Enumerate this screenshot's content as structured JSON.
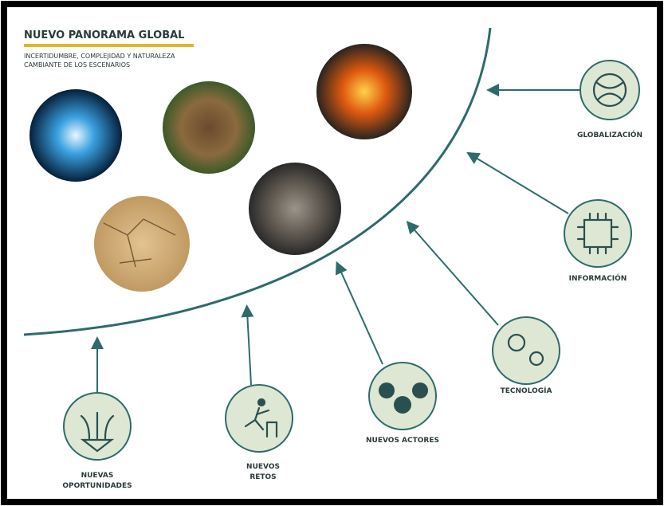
{
  "header": {
    "title": "NUEVO PANORAMA GLOBAL",
    "subtitle": [
      "INCERTIDUMBRE, COMPLEJIDAD Y NATURALEZA",
      "CAMBIANTE DE LOS ESCENARIOS"
    ]
  },
  "nodes": [
    {
      "label": [
        "GLOBALIZACIÓN"
      ]
    },
    {
      "label": [
        "INFORMACIÓN"
      ]
    },
    {
      "label": [
        "TECNOLOGÍA"
      ]
    },
    {
      "label": [
        "NUEVOS ACTORES"
      ]
    },
    {
      "label": [
        "NUEVOS",
        "RETOS"
      ]
    },
    {
      "label": [
        "NUEVAS",
        "OPORTUNIDADES"
      ]
    }
  ]
}
